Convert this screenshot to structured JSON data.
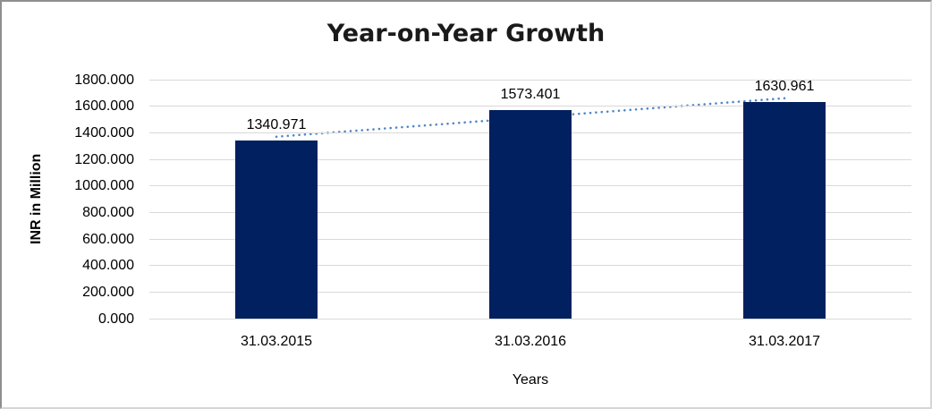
{
  "chart_data": {
    "type": "bar",
    "title": "Year-on-Year Growth",
    "xlabel": "Years",
    "ylabel": "INR in Million",
    "categories": [
      "31.03.2015",
      "31.03.2016",
      "31.03.2017"
    ],
    "values": [
      1340.971,
      1573.401,
      1630.961
    ],
    "value_labels": [
      "1340.971",
      "1573.401",
      "1630.961"
    ],
    "ylim": [
      0,
      1800
    ],
    "y_tick_step": 200,
    "y_tick_labels": [
      "0.000",
      "200.000",
      "400.000",
      "600.000",
      "800.000",
      "1000.000",
      "1200.000",
      "1400.000",
      "1600.000",
      "1800.000"
    ],
    "grid": true,
    "legend_position": "none",
    "trendline": {
      "type": "linear",
      "style": "dotted"
    },
    "colors": {
      "bar": "#002060",
      "trendline": "#4f87c8",
      "gridline": "#d9d9d9",
      "title_text": "#1a1a1a",
      "label_text": "#000000"
    }
  }
}
